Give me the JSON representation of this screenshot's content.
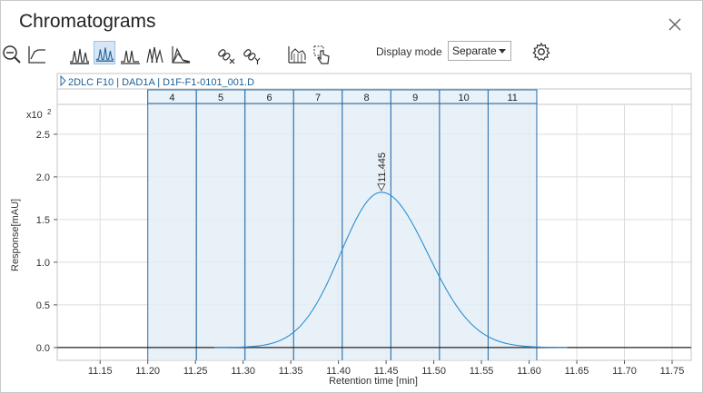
{
  "window": {
    "title": "Chromatograms"
  },
  "toolbar": {
    "display_mode_label": "Display mode",
    "display_mode_value": "Separate",
    "icons": [
      "zoom-out-icon",
      "autoscale-icon",
      "overlay-stack-icon",
      "separate-peaks-icon",
      "peaks-outline-icon",
      "waterfall-icon",
      "area-fill-icon",
      "unlink-x-icon",
      "link-y-icon",
      "fraction-collection-icon",
      "touch-select-icon",
      "settings-gear-icon"
    ]
  },
  "panel": {
    "trace_label": "2DLC F10 | DAD1A | D1F-F1-0101_001.D"
  },
  "chart_data": {
    "type": "line",
    "xlabel": "Retention time [min]",
    "ylabel": "Response[mAU]",
    "y_multiplier": "x10",
    "y_exponent": "2",
    "xlim": [
      11.105,
      11.77
    ],
    "ylim": [
      -0.15,
      2.85
    ],
    "x_ticks": [
      "11.15",
      "11.20",
      "11.25",
      "11.30",
      "11.35",
      "11.40",
      "11.45",
      "11.50",
      "11.55",
      "11.60",
      "11.65",
      "11.70",
      "11.75"
    ],
    "y_ticks": [
      "0.0",
      "0.5",
      "1.0",
      "1.5",
      "2.0",
      "2.5"
    ],
    "grid": true,
    "peak": {
      "rt": 11.445,
      "label": "11.445",
      "height": 1.82,
      "sigma": 0.045
    },
    "fractions": [
      {
        "label": "4",
        "start": 11.2,
        "end": 11.251
      },
      {
        "label": "5",
        "start": 11.251,
        "end": 11.302
      },
      {
        "label": "6",
        "start": 11.302,
        "end": 11.353
      },
      {
        "label": "7",
        "start": 11.353,
        "end": 11.404
      },
      {
        "label": "8",
        "start": 11.404,
        "end": 11.455
      },
      {
        "label": "9",
        "start": 11.455,
        "end": 11.506
      },
      {
        "label": "10",
        "start": 11.506,
        "end": 11.557
      },
      {
        "label": "11",
        "start": 11.557,
        "end": 11.608
      }
    ],
    "colors": {
      "trace": "#2a8fd0",
      "fraction_fill": "#e3edf6",
      "fraction_line": "#2a6ea8",
      "grid": "#dcdcdc"
    }
  }
}
